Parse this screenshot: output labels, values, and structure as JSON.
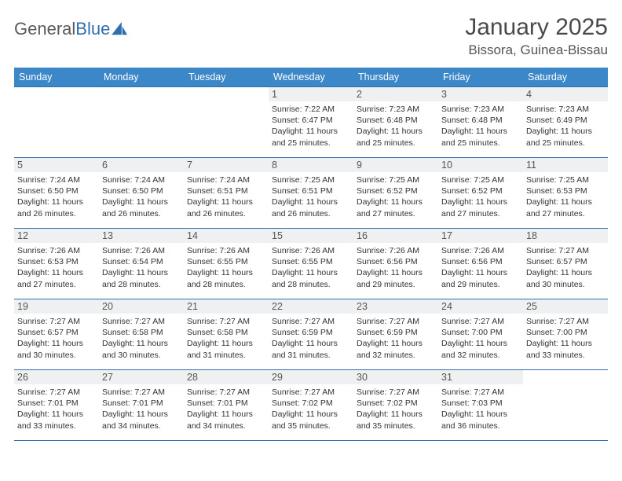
{
  "logo": {
    "text_general": "General",
    "text_blue": "Blue"
  },
  "title": "January 2025",
  "location": "Bissora, Guinea-Bissau",
  "colors": {
    "header_bg": "#3b87c8",
    "header_text": "#ffffff",
    "row_border": "#2f6fb0",
    "daynum_bg": "#eef0f1",
    "body_text": "#333333",
    "logo_gray": "#5a5a5a",
    "logo_blue": "#2f6fb0"
  },
  "typography": {
    "title_fontsize": 30,
    "location_fontsize": 17,
    "header_fontsize": 12.5,
    "cell_fontsize": 10.5
  },
  "weekdays": [
    "Sunday",
    "Monday",
    "Tuesday",
    "Wednesday",
    "Thursday",
    "Friday",
    "Saturday"
  ],
  "weeks": [
    [
      {
        "day": "",
        "lines": [
          "",
          "",
          "",
          ""
        ]
      },
      {
        "day": "",
        "lines": [
          "",
          "",
          "",
          ""
        ]
      },
      {
        "day": "",
        "lines": [
          "",
          "",
          "",
          ""
        ]
      },
      {
        "day": "1",
        "lines": [
          "Sunrise: 7:22 AM",
          "Sunset: 6:47 PM",
          "Daylight: 11 hours",
          "and 25 minutes."
        ]
      },
      {
        "day": "2",
        "lines": [
          "Sunrise: 7:23 AM",
          "Sunset: 6:48 PM",
          "Daylight: 11 hours",
          "and 25 minutes."
        ]
      },
      {
        "day": "3",
        "lines": [
          "Sunrise: 7:23 AM",
          "Sunset: 6:48 PM",
          "Daylight: 11 hours",
          "and 25 minutes."
        ]
      },
      {
        "day": "4",
        "lines": [
          "Sunrise: 7:23 AM",
          "Sunset: 6:49 PM",
          "Daylight: 11 hours",
          "and 25 minutes."
        ]
      }
    ],
    [
      {
        "day": "5",
        "lines": [
          "Sunrise: 7:24 AM",
          "Sunset: 6:50 PM",
          "Daylight: 11 hours",
          "and 26 minutes."
        ]
      },
      {
        "day": "6",
        "lines": [
          "Sunrise: 7:24 AM",
          "Sunset: 6:50 PM",
          "Daylight: 11 hours",
          "and 26 minutes."
        ]
      },
      {
        "day": "7",
        "lines": [
          "Sunrise: 7:24 AM",
          "Sunset: 6:51 PM",
          "Daylight: 11 hours",
          "and 26 minutes."
        ]
      },
      {
        "day": "8",
        "lines": [
          "Sunrise: 7:25 AM",
          "Sunset: 6:51 PM",
          "Daylight: 11 hours",
          "and 26 minutes."
        ]
      },
      {
        "day": "9",
        "lines": [
          "Sunrise: 7:25 AM",
          "Sunset: 6:52 PM",
          "Daylight: 11 hours",
          "and 27 minutes."
        ]
      },
      {
        "day": "10",
        "lines": [
          "Sunrise: 7:25 AM",
          "Sunset: 6:52 PM",
          "Daylight: 11 hours",
          "and 27 minutes."
        ]
      },
      {
        "day": "11",
        "lines": [
          "Sunrise: 7:25 AM",
          "Sunset: 6:53 PM",
          "Daylight: 11 hours",
          "and 27 minutes."
        ]
      }
    ],
    [
      {
        "day": "12",
        "lines": [
          "Sunrise: 7:26 AM",
          "Sunset: 6:53 PM",
          "Daylight: 11 hours",
          "and 27 minutes."
        ]
      },
      {
        "day": "13",
        "lines": [
          "Sunrise: 7:26 AM",
          "Sunset: 6:54 PM",
          "Daylight: 11 hours",
          "and 28 minutes."
        ]
      },
      {
        "day": "14",
        "lines": [
          "Sunrise: 7:26 AM",
          "Sunset: 6:55 PM",
          "Daylight: 11 hours",
          "and 28 minutes."
        ]
      },
      {
        "day": "15",
        "lines": [
          "Sunrise: 7:26 AM",
          "Sunset: 6:55 PM",
          "Daylight: 11 hours",
          "and 28 minutes."
        ]
      },
      {
        "day": "16",
        "lines": [
          "Sunrise: 7:26 AM",
          "Sunset: 6:56 PM",
          "Daylight: 11 hours",
          "and 29 minutes."
        ]
      },
      {
        "day": "17",
        "lines": [
          "Sunrise: 7:26 AM",
          "Sunset: 6:56 PM",
          "Daylight: 11 hours",
          "and 29 minutes."
        ]
      },
      {
        "day": "18",
        "lines": [
          "Sunrise: 7:27 AM",
          "Sunset: 6:57 PM",
          "Daylight: 11 hours",
          "and 30 minutes."
        ]
      }
    ],
    [
      {
        "day": "19",
        "lines": [
          "Sunrise: 7:27 AM",
          "Sunset: 6:57 PM",
          "Daylight: 11 hours",
          "and 30 minutes."
        ]
      },
      {
        "day": "20",
        "lines": [
          "Sunrise: 7:27 AM",
          "Sunset: 6:58 PM",
          "Daylight: 11 hours",
          "and 30 minutes."
        ]
      },
      {
        "day": "21",
        "lines": [
          "Sunrise: 7:27 AM",
          "Sunset: 6:58 PM",
          "Daylight: 11 hours",
          "and 31 minutes."
        ]
      },
      {
        "day": "22",
        "lines": [
          "Sunrise: 7:27 AM",
          "Sunset: 6:59 PM",
          "Daylight: 11 hours",
          "and 31 minutes."
        ]
      },
      {
        "day": "23",
        "lines": [
          "Sunrise: 7:27 AM",
          "Sunset: 6:59 PM",
          "Daylight: 11 hours",
          "and 32 minutes."
        ]
      },
      {
        "day": "24",
        "lines": [
          "Sunrise: 7:27 AM",
          "Sunset: 7:00 PM",
          "Daylight: 11 hours",
          "and 32 minutes."
        ]
      },
      {
        "day": "25",
        "lines": [
          "Sunrise: 7:27 AM",
          "Sunset: 7:00 PM",
          "Daylight: 11 hours",
          "and 33 minutes."
        ]
      }
    ],
    [
      {
        "day": "26",
        "lines": [
          "Sunrise: 7:27 AM",
          "Sunset: 7:01 PM",
          "Daylight: 11 hours",
          "and 33 minutes."
        ]
      },
      {
        "day": "27",
        "lines": [
          "Sunrise: 7:27 AM",
          "Sunset: 7:01 PM",
          "Daylight: 11 hours",
          "and 34 minutes."
        ]
      },
      {
        "day": "28",
        "lines": [
          "Sunrise: 7:27 AM",
          "Sunset: 7:01 PM",
          "Daylight: 11 hours",
          "and 34 minutes."
        ]
      },
      {
        "day": "29",
        "lines": [
          "Sunrise: 7:27 AM",
          "Sunset: 7:02 PM",
          "Daylight: 11 hours",
          "and 35 minutes."
        ]
      },
      {
        "day": "30",
        "lines": [
          "Sunrise: 7:27 AM",
          "Sunset: 7:02 PM",
          "Daylight: 11 hours",
          "and 35 minutes."
        ]
      },
      {
        "day": "31",
        "lines": [
          "Sunrise: 7:27 AM",
          "Sunset: 7:03 PM",
          "Daylight: 11 hours",
          "and 36 minutes."
        ]
      },
      {
        "day": "",
        "lines": [
          "",
          "",
          "",
          ""
        ]
      }
    ]
  ]
}
